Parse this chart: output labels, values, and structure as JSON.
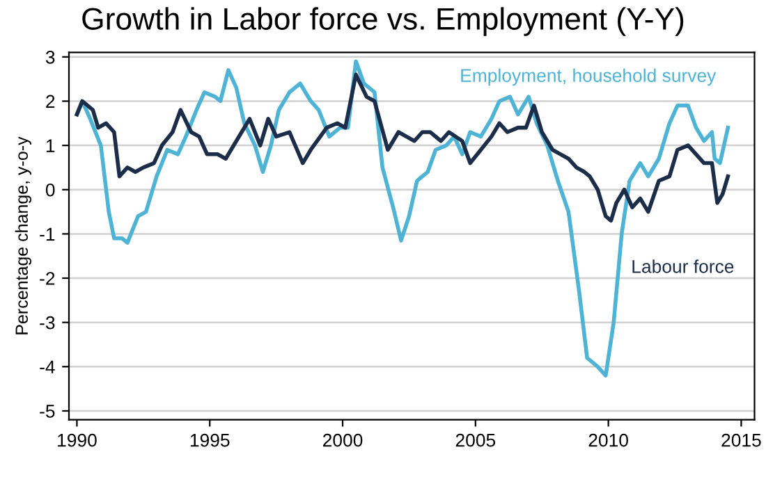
{
  "chart_data": {
    "type": "line",
    "title": "Growth in Labor force vs. Employment (Y-Y)",
    "ylabel": "Percentage change, y-o-y",
    "xlim": [
      1989.7,
      2015.5
    ],
    "xticks": [
      1990,
      1995,
      2000,
      2005,
      2010,
      2015
    ],
    "ylim": [
      -5.2,
      3.1
    ],
    "yticks": [
      -5,
      -4,
      -3,
      -2,
      -1,
      0,
      1,
      2,
      3
    ],
    "grid": "y",
    "legend": false,
    "line_style": "solid",
    "marker": "none",
    "series": [
      {
        "name": "Employment, household survey",
        "color": "#4fb3d6",
        "x": [
          1990.0,
          1990.2,
          1990.5,
          1990.9,
          1991.2,
          1991.4,
          1991.7,
          1991.9,
          1992.3,
          1992.6,
          1993.0,
          1993.4,
          1993.8,
          1994.1,
          1994.5,
          1994.8,
          1995.2,
          1995.4,
          1995.7,
          1996.0,
          1996.3,
          1996.7,
          1997.0,
          1997.3,
          1997.6,
          1998.0,
          1998.4,
          1998.8,
          1999.1,
          1999.5,
          1999.9,
          2000.2,
          2000.5,
          2000.8,
          2001.2,
          2001.5,
          2001.9,
          2002.2,
          2002.5,
          2002.8,
          2003.2,
          2003.5,
          2003.9,
          2004.2,
          2004.5,
          2004.8,
          2005.2,
          2005.6,
          2005.9,
          2006.3,
          2006.6,
          2007.0,
          2007.3,
          2007.7,
          2008.1,
          2008.5,
          2008.9,
          2009.2,
          2009.6,
          2009.9,
          2010.2,
          2010.5,
          2010.8,
          2011.2,
          2011.5,
          2011.9,
          2012.3,
          2012.6,
          2013.0,
          2013.3,
          2013.6,
          2013.9,
          2014.0,
          2014.2,
          2014.5
        ],
        "values": [
          1.7,
          2.0,
          1.6,
          1.0,
          -0.5,
          -1.1,
          -1.1,
          -1.2,
          -0.6,
          -0.5,
          0.3,
          0.9,
          0.8,
          1.2,
          1.8,
          2.2,
          2.1,
          2.0,
          2.7,
          2.3,
          1.5,
          1.0,
          0.4,
          1.0,
          1.8,
          2.2,
          2.4,
          2.0,
          1.8,
          1.2,
          1.4,
          1.4,
          2.9,
          2.4,
          2.2,
          0.5,
          -0.4,
          -1.15,
          -0.6,
          0.2,
          0.4,
          0.9,
          1.0,
          1.2,
          0.8,
          1.3,
          1.2,
          1.6,
          2.0,
          2.1,
          1.7,
          2.1,
          1.5,
          1.0,
          0.2,
          -0.5,
          -2.3,
          -3.8,
          -4.0,
          -4.2,
          -3.0,
          -1.0,
          0.2,
          0.6,
          0.3,
          0.7,
          1.5,
          1.9,
          1.9,
          1.4,
          1.1,
          1.3,
          0.7,
          0.6,
          1.4
        ]
      },
      {
        "name": "Labour force",
        "color": "#1c2d4a",
        "x": [
          1990.0,
          1990.2,
          1990.6,
          1990.8,
          1991.1,
          1991.4,
          1991.6,
          1991.9,
          1992.2,
          1992.5,
          1992.9,
          1993.2,
          1993.6,
          1993.9,
          1994.3,
          1994.6,
          1994.9,
          1995.3,
          1995.6,
          1996.0,
          1996.5,
          1996.9,
          1997.2,
          1997.5,
          1998.0,
          1998.5,
          1998.8,
          1999.4,
          1999.8,
          2000.1,
          2000.5,
          2000.9,
          2001.2,
          2001.7,
          2002.1,
          2002.4,
          2002.7,
          2003.0,
          2003.3,
          2003.7,
          2004.0,
          2004.5,
          2004.8,
          2005.2,
          2005.6,
          2005.9,
          2006.2,
          2006.6,
          2006.9,
          2007.2,
          2007.5,
          2007.9,
          2008.2,
          2008.5,
          2008.8,
          2009.1,
          2009.3,
          2009.6,
          2009.9,
          2010.1,
          2010.3,
          2010.6,
          2010.9,
          2011.2,
          2011.5,
          2011.9,
          2012.3,
          2012.6,
          2013.0,
          2013.3,
          2013.6,
          2013.9,
          2014.1,
          2014.3,
          2014.5
        ],
        "values": [
          1.7,
          2.0,
          1.8,
          1.4,
          1.5,
          1.3,
          0.3,
          0.5,
          0.4,
          0.5,
          0.6,
          1.0,
          1.3,
          1.8,
          1.3,
          1.2,
          0.8,
          0.8,
          0.7,
          1.1,
          1.6,
          1.0,
          1.6,
          1.2,
          1.3,
          0.6,
          0.9,
          1.4,
          1.5,
          1.4,
          2.6,
          2.1,
          2.0,
          0.9,
          1.3,
          1.2,
          1.1,
          1.3,
          1.3,
          1.1,
          1.3,
          1.1,
          0.6,
          0.9,
          1.2,
          1.5,
          1.3,
          1.4,
          1.4,
          1.9,
          1.3,
          0.9,
          0.8,
          0.7,
          0.5,
          0.4,
          0.3,
          0.0,
          -0.6,
          -0.7,
          -0.3,
          0.0,
          -0.4,
          -0.2,
          -0.5,
          0.2,
          0.3,
          0.9,
          1.0,
          0.8,
          0.6,
          0.6,
          -0.3,
          -0.1,
          0.3
        ]
      }
    ]
  }
}
